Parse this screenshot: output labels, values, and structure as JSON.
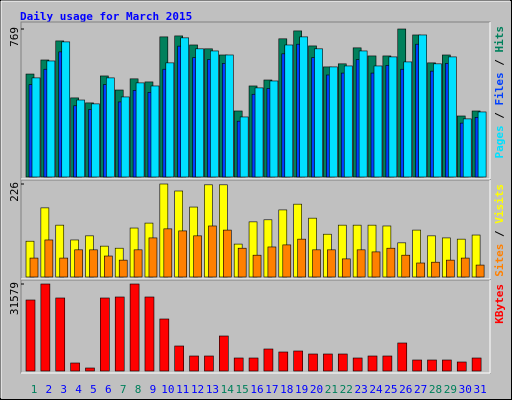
{
  "chart_data": [
    {
      "type": "bar",
      "title": "Daily usage for March 2015",
      "ylim": [
        0,
        769
      ],
      "yticks": [
        769
      ],
      "legend_separator": " / ",
      "series": [
        {
          "name": "Hits",
          "color": "#00805c",
          "values": [
            535,
            608,
            707,
            411,
            385,
            525,
            452,
            510,
            494,
            728,
            733,
            686,
            666,
            634,
            343,
            473,
            504,
            718,
            759,
            681,
            572,
            588,
            671,
            629,
            629,
            769,
            738,
            593,
            634,
            317,
            343
          ]
        },
        {
          "name": "Files",
          "color": "#0040ff",
          "values": [
            480,
            560,
            650,
            370,
            350,
            480,
            390,
            450,
            440,
            560,
            680,
            620,
            610,
            590,
            290,
            430,
            460,
            640,
            690,
            620,
            530,
            540,
            610,
            540,
            580,
            560,
            690,
            550,
            590,
            280,
            310
          ]
        },
        {
          "name": "Pages",
          "color": "#00e0ff",
          "values": [
            515,
            603,
            702,
            400,
            380,
            515,
            416,
            489,
            473,
            593,
            723,
            666,
            655,
            634,
            312,
            463,
            499,
            686,
            728,
            666,
            572,
            577,
            655,
            577,
            624,
            598,
            738,
            588,
            624,
            302,
            338
          ]
        }
      ]
    },
    {
      "type": "bar",
      "ylim": [
        0,
        226
      ],
      "yticks": [
        226
      ],
      "legend_separator": " / ",
      "series": [
        {
          "name": "Visits",
          "color": "#ffff00",
          "values": [
            87,
            168,
            126,
            90,
            100,
            75,
            70,
            119,
            131,
            226,
            209,
            170,
            224,
            224,
            80,
            134,
            139,
            163,
            177,
            143,
            104,
            126,
            126,
            126,
            124,
            83,
            114,
            100,
            95,
            92,
            102
          ]
        },
        {
          "name": "Sites",
          "color": "#ff8000",
          "values": [
            46,
            90,
            46,
            66,
            66,
            51,
            41,
            66,
            95,
            117,
            112,
            100,
            124,
            114,
            70,
            53,
            73,
            78,
            92,
            66,
            66,
            44,
            66,
            61,
            70,
            53,
            34,
            36,
            41,
            46,
            29
          ]
        }
      ]
    },
    {
      "type": "bar",
      "ylim": [
        0,
        31579
      ],
      "yticks": [
        31579
      ],
      "categories": [
        "1",
        "2",
        "3",
        "4",
        "5",
        "6",
        "7",
        "8",
        "9",
        "10",
        "11",
        "12",
        "13",
        "14",
        "15",
        "16",
        "17",
        "18",
        "19",
        "20",
        "21",
        "22",
        "23",
        "24",
        "25",
        "26",
        "27",
        "28",
        "29",
        "30",
        "31"
      ],
      "highlighted": [
        0,
        6,
        7,
        13,
        14,
        20,
        21,
        27,
        28
      ],
      "label_color": "#0000ff",
      "highlight_color": "#00805c",
      "series": [
        {
          "name": "KBytes",
          "color": "#ff0000",
          "values": [
            25773,
            31579,
            26500,
            2904,
            1089,
            26500,
            26862,
            31579,
            26862,
            18876,
            9075,
            5445,
            5445,
            12705,
            4719,
            4719,
            7986,
            6897,
            7260,
            6171,
            6171,
            6171,
            4719,
            5445,
            5445,
            10164,
            3993,
            3993,
            3993,
            3267,
            4719
          ]
        }
      ]
    }
  ]
}
